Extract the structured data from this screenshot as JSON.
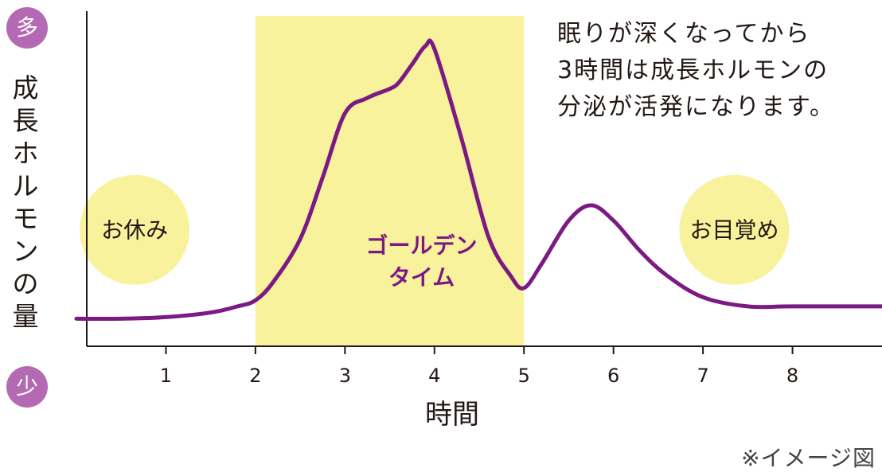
{
  "chart_data": {
    "type": "line",
    "ylabel": "成長ホルモンの量",
    "xlabel": "時間",
    "y_high_label": "多",
    "y_low_label": "少",
    "x": [
      0,
      0.5,
      1,
      1.5,
      1.8,
      2,
      2.2,
      2.5,
      2.75,
      3,
      3.25,
      3.5,
      3.6,
      3.75,
      3.9,
      4,
      4.3,
      4.6,
      4.85,
      5,
      5.2,
      5.5,
      5.75,
      6,
      6.3,
      6.6,
      7,
      7.5,
      8,
      9
    ],
    "values": [
      0.09,
      0.09,
      0.095,
      0.11,
      0.13,
      0.15,
      0.21,
      0.35,
      0.55,
      0.76,
      0.81,
      0.84,
      0.86,
      0.92,
      0.98,
      0.97,
      0.68,
      0.36,
      0.23,
      0.19,
      0.27,
      0.41,
      0.46,
      0.41,
      0.31,
      0.23,
      0.16,
      0.13,
      0.13,
      0.13
    ],
    "xlim": [
      0,
      9
    ],
    "ylim": [
      0,
      1
    ],
    "xticks": [
      "1",
      "2",
      "3",
      "4",
      "5",
      "6",
      "7",
      "8"
    ],
    "highlight_range": [
      2,
      5
    ],
    "highlight_label": "ゴールデン\nタイム",
    "annotations": [
      {
        "text": "お休み",
        "x": 0.65,
        "y": 0.38
      },
      {
        "text": "お目覚め",
        "x": 7.35,
        "y": 0.38
      }
    ],
    "note": "眠りが深くなってから\n3時間は成長ホルモンの\n分泌が活発になります。",
    "footnote": "※イメージ図",
    "colors": {
      "line": "#7b1a83",
      "highlight": "#f8f29c",
      "circle": "#f8f29c",
      "badge": "#b46ab2",
      "axis": "#231815",
      "highlight_text": "#7b1a83"
    }
  }
}
